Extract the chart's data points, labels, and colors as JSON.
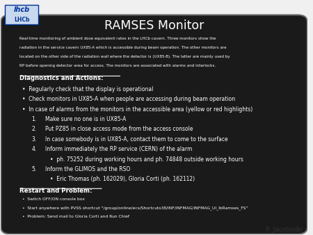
{
  "title": "RAMSES Monitor",
  "intro_lines": [
    "Real-time monitoring of ambient dose equivalent rates in the LHCb cavern. Three monitors show the",
    "radiation in the service cavern UX85-A which is accessible during beam operation. The other monitors are",
    "located on the other side of the radiation wall where the detector is (UX85-B). The latter are mainly used by",
    "RP before opening detector area for access. The monitors are associated with alarms and interlocks."
  ],
  "section1_header": "Diagnostics and Actions:",
  "bullets1": [
    "Regularly check that the display is operational",
    "Check monitors in UX85-A when people are accessing during beam operation",
    "In case of alarms from the monitors in the accessible area (yellow or red highlights)"
  ],
  "numbered1": [
    "Make sure no one is in UX85-A",
    "Put PZ85 in close access mode from the access console",
    "In case somebody is in UX85-A, contact them to come to the surface",
    "Inform immediately the RP service (CERN) of the alarm",
    "Inform the GLIMOS and the RSO"
  ],
  "sub_bullet4": "ph. 75252 during working hours and ph. 74848 outside working hours",
  "sub_bullet5": "Eric Thomas (ph. 162029), Gloria Corti (ph. 162112)",
  "section2_header": "Restart and Problem:",
  "bullets2": [
    "Switch OFF/ON console box",
    "Start anywhere with PVSS shortcut \"/group/online/ecs/Shortcuts38/INF/INFMAG/INFMAG_UI_lbRamses_FS\"",
    "Problem: Send mail to Gloria Corti and Run Chief"
  ],
  "author": "R. Jacobsson",
  "page": "1",
  "bg_slide": "#f0f0f0",
  "box_bg": "#1a1a1a",
  "box_text": "#ffffff",
  "title_color": "#ffffff",
  "header_color": "#ffffff"
}
